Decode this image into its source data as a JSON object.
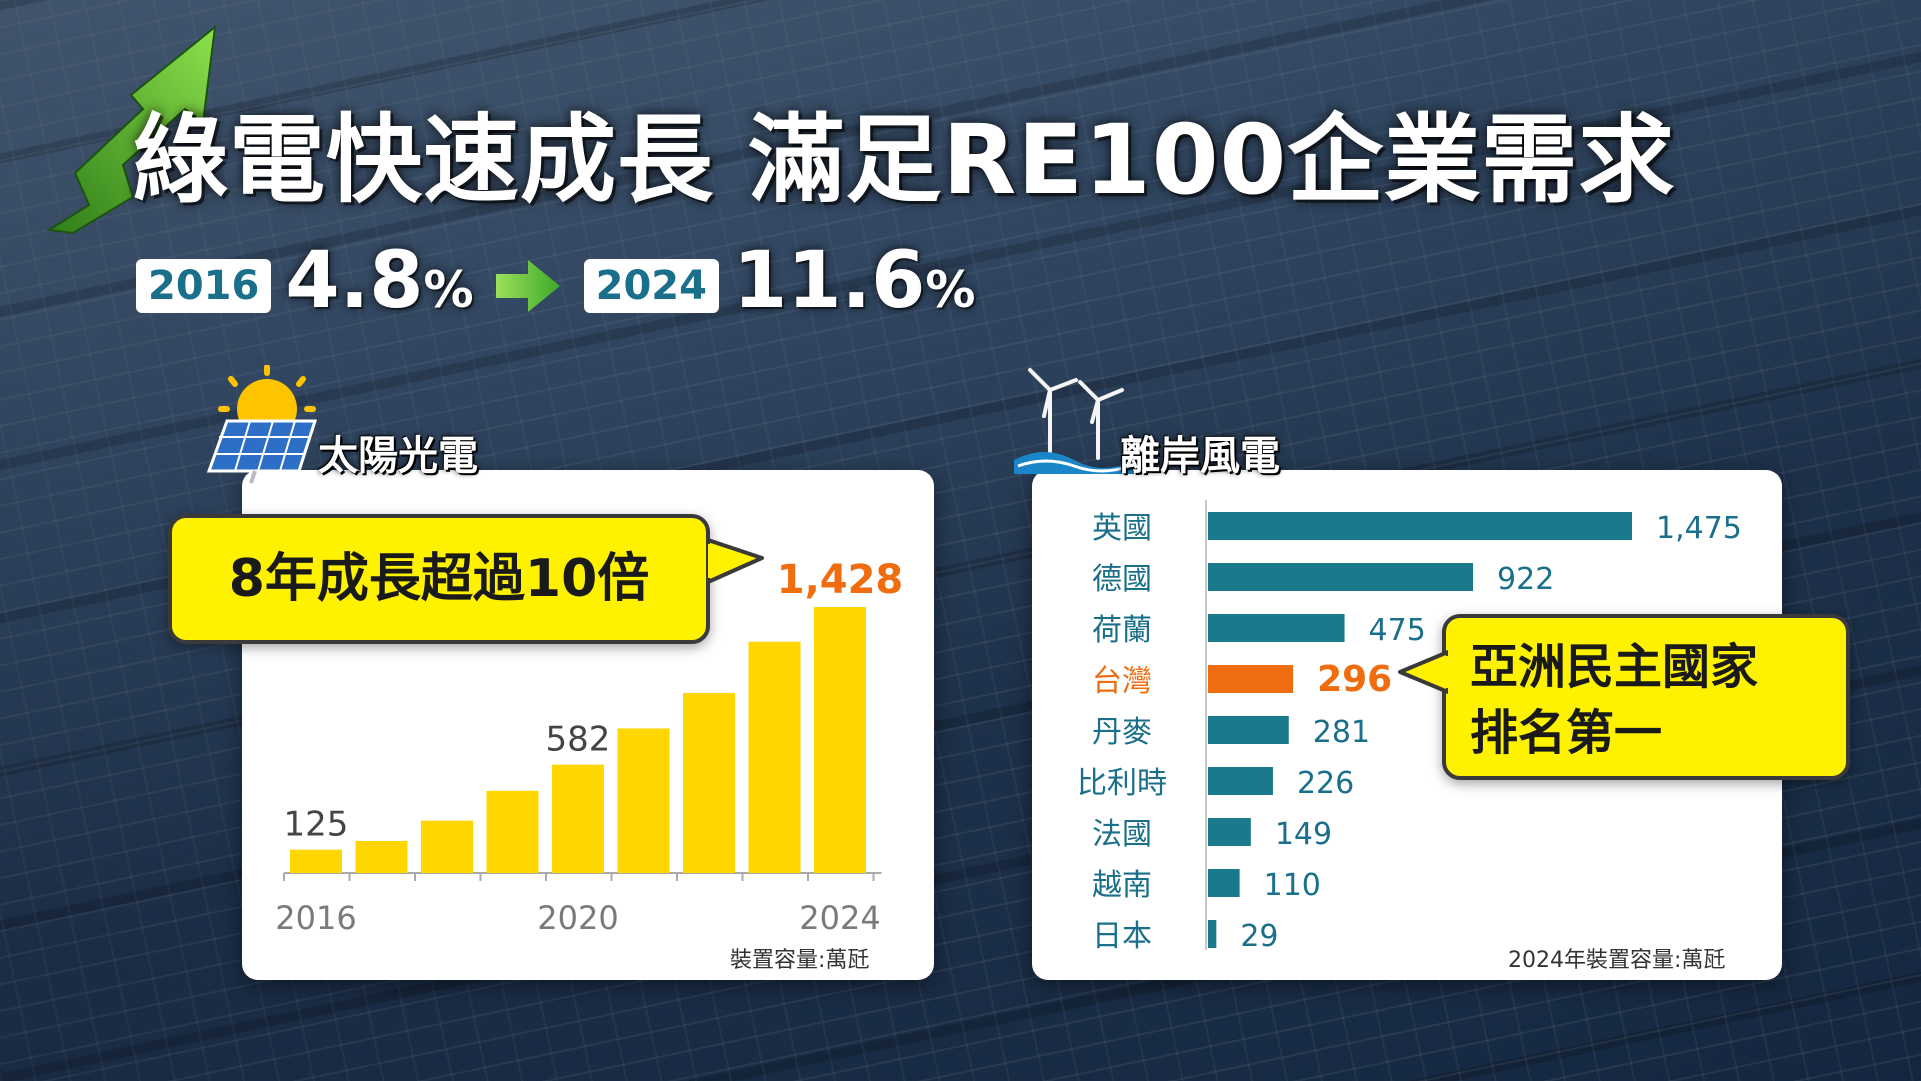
{
  "headline": {
    "title": "綠電快速成長 滿足RE100企業需求",
    "start_year": "2016",
    "start_pct": "4.8",
    "end_year": "2024",
    "end_pct": "11.6",
    "pct_symbol": "%"
  },
  "solar": {
    "label": "太陽光電",
    "callout": "8年成長超過10倍",
    "caption": "裝置容量:萬瓩"
  },
  "wind": {
    "label": "離岸風電",
    "callout_line1": "亞洲民主國家",
    "callout_line2": "排名第一",
    "caption": "2024年裝置容量:萬瓩"
  },
  "colors": {
    "solar_bar": "#ffd600",
    "wind_bar": "#1a7a8c",
    "highlight": "#ef6c0f",
    "label_text": "#1a6f8a",
    "callout_bg": "#fff200"
  },
  "chart_data": [
    {
      "type": "bar",
      "categories": [
        "2016",
        "2017",
        "2018",
        "2019",
        "2020",
        "2021",
        "2022",
        "2023",
        "2024"
      ],
      "values": [
        125,
        172,
        281,
        441,
        582,
        776,
        967,
        1242,
        1428
      ],
      "value_labels": [
        "125",
        "",
        "",
        "",
        "582",
        "",
        "",
        "",
        "1,428"
      ],
      "tick_labels": [
        "2016",
        "",
        "",
        "",
        "2020",
        "",
        "",
        "",
        "2024"
      ],
      "title": "太陽光電",
      "unit": "裝置容量:萬瓩",
      "ylim": [
        0,
        1600
      ],
      "grid": false
    },
    {
      "type": "bar",
      "orientation": "horizontal",
      "categories": [
        "英國",
        "德國",
        "荷蘭",
        "台灣",
        "丹麥",
        "比利時",
        "法國",
        "越南",
        "日本"
      ],
      "values": [
        1475,
        922,
        475,
        296,
        281,
        226,
        149,
        110,
        29
      ],
      "value_labels": [
        "1,475",
        "922",
        "475",
        "296",
        "281",
        "226",
        "149",
        "110",
        "29"
      ],
      "highlight": "台灣",
      "title": "離岸風電",
      "unit": "2024年裝置容量:萬瓩",
      "xlim": [
        0,
        1475
      ],
      "grid": false
    }
  ]
}
